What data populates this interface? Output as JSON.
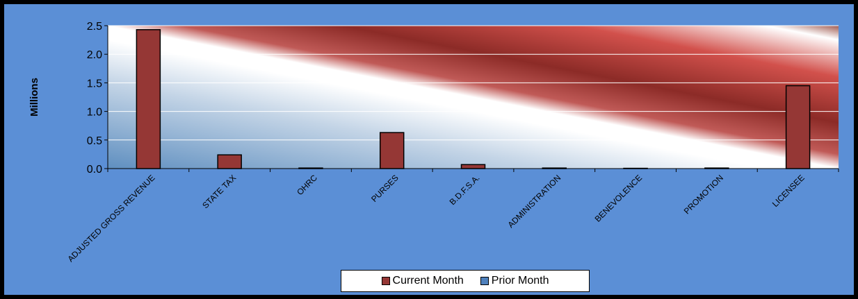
{
  "chart_data": {
    "type": "bar",
    "title": "",
    "xlabel": "",
    "ylabel": "Millions",
    "ylim": [
      0,
      2.5
    ],
    "yticks": [
      "0.0",
      "0.5",
      "1.0",
      "1.5",
      "2.0",
      "2.5"
    ],
    "grid": true,
    "legend_position": "bottom",
    "categories": [
      "ADJUSTED GROSS REVENUE",
      "STATE TAX",
      "OHRC",
      "PURSES",
      "B.D.F.S.A.",
      "ADMINISTRATION",
      "BENEVOLENCE",
      "PROMOTION",
      "LICENSEE"
    ],
    "series": [
      {
        "name": "Current Month",
        "color": "#953735",
        "values": [
          2.43,
          0.24,
          0.01,
          0.63,
          0.07,
          0.01,
          0.005,
          0.01,
          1.45
        ]
      },
      {
        "name": "Prior Month",
        "color": "#4f81bd",
        "values": [
          0,
          0,
          0,
          0,
          0,
          0,
          0,
          0,
          0
        ]
      }
    ]
  }
}
